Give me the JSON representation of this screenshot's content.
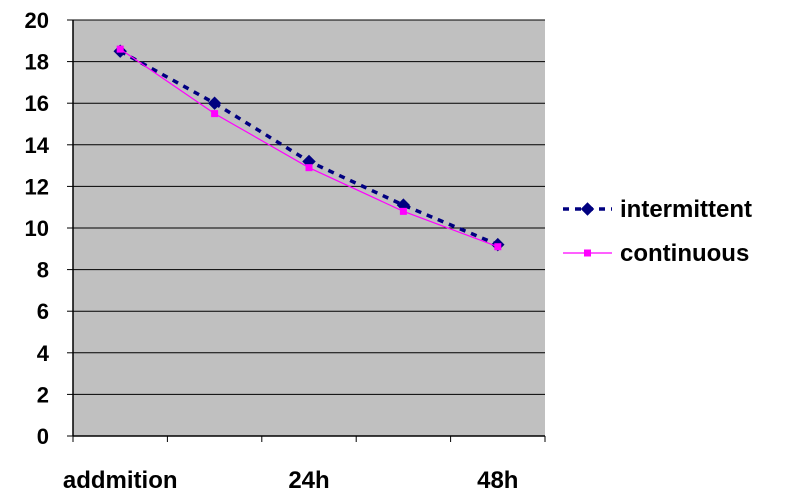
{
  "chart_data": {
    "type": "line",
    "categories": [
      "addmition",
      "",
      "24h",
      "",
      "48h"
    ],
    "series": [
      {
        "name": "intermittent",
        "values": [
          18.5,
          16.0,
          13.2,
          11.1,
          9.2
        ],
        "color": "#000080",
        "dash": "dashed",
        "marker": "diamond"
      },
      {
        "name": "continuous",
        "values": [
          18.6,
          15.5,
          12.9,
          10.8,
          9.1
        ],
        "color": "#FF00FF",
        "dash": "solid",
        "marker": "square"
      }
    ],
    "title": "",
    "xlabel": "",
    "ylabel": "",
    "ylim": [
      0,
      20
    ],
    "yticks": [
      "0",
      "2",
      "4",
      "6",
      "8",
      "10",
      "12",
      "14",
      "16",
      "18",
      "20"
    ],
    "grid": true,
    "plot_background": "#C0C0C0",
    "legend_position": "right"
  }
}
